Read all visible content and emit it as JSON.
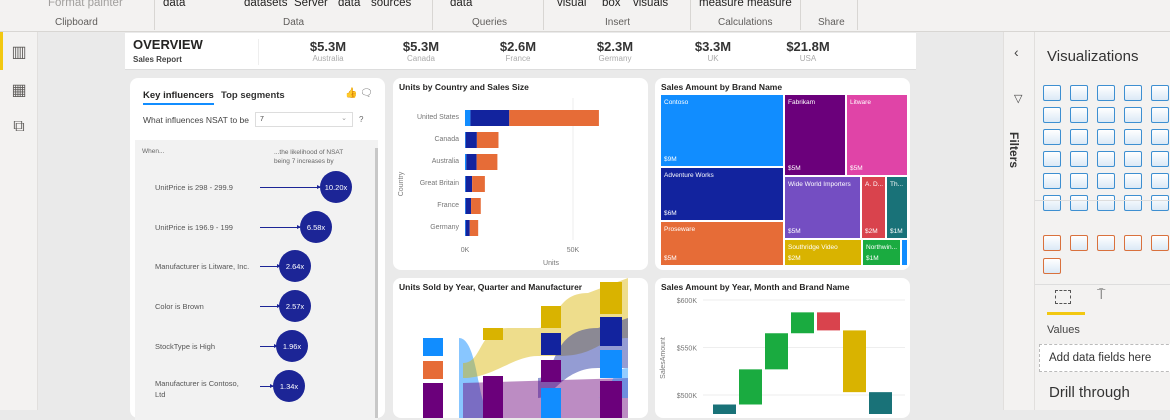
{
  "ribbon": {
    "items": [
      "Format painter",
      "data",
      "datasets",
      "Server",
      "data",
      "sources",
      "data",
      "visual",
      "box",
      "visuals",
      "measure",
      "measure"
    ],
    "groups": [
      "Clipboard",
      "Data",
      "Queries",
      "Insert",
      "Calculations",
      "Share"
    ]
  },
  "header": {
    "title": "OVERVIEW",
    "subtitle": "Sales Report",
    "kpis": [
      {
        "value": "$5.3M",
        "label": "Australia"
      },
      {
        "value": "$5.3M",
        "label": "Canada"
      },
      {
        "value": "$2.6M",
        "label": "France"
      },
      {
        "value": "$2.3M",
        "label": "Germany"
      },
      {
        "value": "$3.3M",
        "label": "UK"
      },
      {
        "value": "$21.8M",
        "label": "USA"
      }
    ]
  },
  "key_influencers": {
    "tabs": [
      "Key influencers",
      "Top segments"
    ],
    "question": "What influences NSAT to be",
    "dropdown_value": "7",
    "help": "?",
    "col_when": "When...",
    "col_likelihood": "...the likelihood of NSAT being 7 increases by",
    "rows": [
      {
        "label": "UnitPrice is 298 - 299.9",
        "value": "10.20x"
      },
      {
        "label": "UnitPrice is 196.9 - 199",
        "value": "6.58x"
      },
      {
        "label": "Manufacturer is Litware, Inc.",
        "value": "2.64x"
      },
      {
        "label": "Color is Brown",
        "value": "2.57x"
      },
      {
        "label": "StockType is High",
        "value": "1.96x"
      },
      {
        "label": "Manufacturer is Contoso, Ltd",
        "value": "1.34x"
      }
    ]
  },
  "chart_data": [
    {
      "type": "bar",
      "title": "Units by Country and Sales Size",
      "xlabel": "Units",
      "ylabel": "Country",
      "xlim": [
        0,
        75000
      ],
      "xticks": [
        "0K",
        "50K"
      ],
      "categories": [
        "United States",
        "Canada",
        "Australia",
        "Great Britain",
        "France",
        "Germany"
      ],
      "series": [
        {
          "color": "#118dff",
          "values": [
            2500,
            300,
            600,
            300,
            300,
            300
          ]
        },
        {
          "color": "#12239e",
          "values": [
            18000,
            5200,
            4800,
            3000,
            2500,
            1900
          ]
        },
        {
          "color": "#e66c37",
          "values": [
            41500,
            10000,
            9600,
            5900,
            4500,
            3900
          ]
        }
      ]
    },
    {
      "type": "treemap",
      "title": "Sales Amount by Brand Name",
      "items": [
        {
          "name": "Contoso",
          "label": "$9M",
          "color": "#118dff"
        },
        {
          "name": "Adventure Works",
          "label": "$6M",
          "color": "#12239e"
        },
        {
          "name": "Proseware",
          "label": "$5M",
          "color": "#e66c37"
        },
        {
          "name": "Fabrikam",
          "label": "$5M",
          "color": "#6b007b"
        },
        {
          "name": "Litware",
          "label": "$5M",
          "color": "#e044a7"
        },
        {
          "name": "Wide World Importers",
          "label": "$5M",
          "color": "#744ec2"
        },
        {
          "name": "A. D...",
          "label": "$2M",
          "color": "#d9434d"
        },
        {
          "name": "Th...",
          "label": "$1M",
          "color": "#197278"
        },
        {
          "name": "Southridge Video",
          "label": "$2M",
          "color": "#d9b300"
        },
        {
          "name": "Northwin...",
          "label": "$1M",
          "color": "#1aab40"
        }
      ]
    },
    {
      "type": "ribbon",
      "title": "Units Sold by Year, Quarter and Manufacturer"
    },
    {
      "type": "waterfall",
      "title": "Sales Amount by Year, Month and Brand Name",
      "ylabel": "SalesAmount",
      "yticks": [
        "$600K",
        "$550K",
        "$500K"
      ],
      "ylim": [
        480000,
        600000
      ],
      "bars": [
        {
          "start": 480000,
          "end": 490000,
          "color": "#197278"
        },
        {
          "start": 490000,
          "end": 527000,
          "color": "#1aab40"
        },
        {
          "start": 527000,
          "end": 565000,
          "color": "#1aab40"
        },
        {
          "start": 565000,
          "end": 587000,
          "color": "#1aab40"
        },
        {
          "start": 587000,
          "end": 568000,
          "color": "#d9434d"
        },
        {
          "start": 568000,
          "end": 503000,
          "color": "#d9b300"
        },
        {
          "start": 503000,
          "end": 480000,
          "color": "#197278"
        }
      ]
    }
  ],
  "filters": {
    "label": "Filters"
  },
  "viz": {
    "title": "Visualizations",
    "values_label": "Values",
    "add_fields": "Add data fields here",
    "drill": "Drill through"
  }
}
